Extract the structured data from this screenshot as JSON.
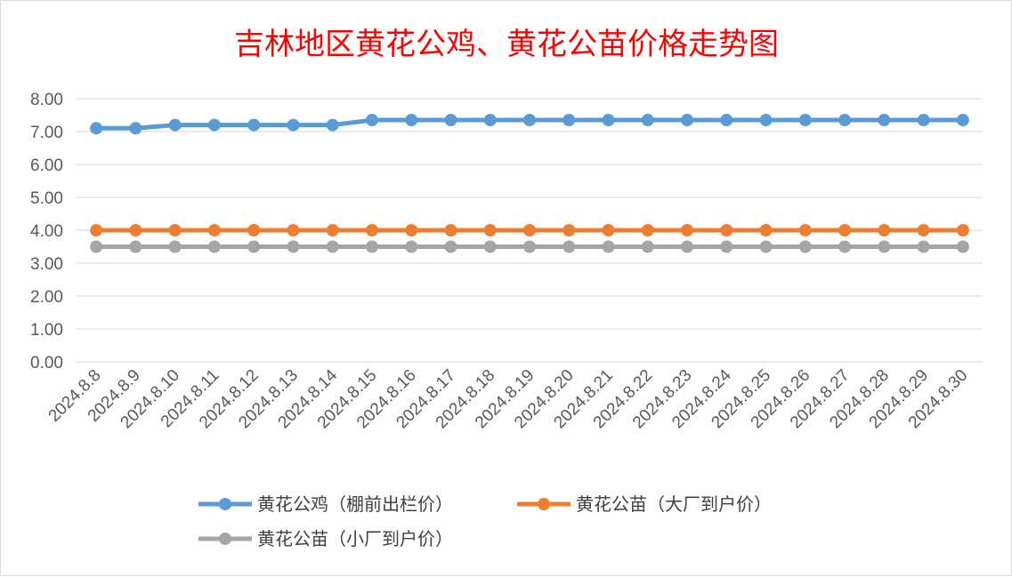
{
  "chart_data": {
    "type": "line",
    "title": "吉林地区黄花公鸡、黄花公苗价格走势图",
    "xlabel": "",
    "ylabel": "",
    "ylim": [
      0,
      8
    ],
    "yticks": [
      "0.00",
      "1.00",
      "2.00",
      "3.00",
      "4.00",
      "5.00",
      "6.00",
      "7.00",
      "8.00"
    ],
    "grid": true,
    "legend_position": "bottom",
    "categories": [
      "2024.8.8",
      "2024.8.9",
      "2024.8.10",
      "2024.8.11",
      "2024.8.12",
      "2024.8.13",
      "2024.8.14",
      "2024.8.15",
      "2024.8.16",
      "2024.8.17",
      "2024.8.18",
      "2024.8.19",
      "2024.8.20",
      "2024.8.21",
      "2024.8.22",
      "2024.8.23",
      "2024.8.24",
      "2024.8.25",
      "2024.8.26",
      "2024.8.27",
      "2024.8.28",
      "2024.8.29",
      "2024.8.30"
    ],
    "series": [
      {
        "name": "黄花公鸡（棚前出栏价）",
        "color": "#5b9bd5",
        "values": [
          7.1,
          7.1,
          7.2,
          7.2,
          7.2,
          7.2,
          7.2,
          7.35,
          7.35,
          7.35,
          7.35,
          7.35,
          7.35,
          7.35,
          7.35,
          7.35,
          7.35,
          7.35,
          7.35,
          7.35,
          7.35,
          7.35,
          7.35
        ]
      },
      {
        "name": "黄花公苗（大厂到户价）",
        "color": "#ed7d31",
        "values": [
          4.0,
          4.0,
          4.0,
          4.0,
          4.0,
          4.0,
          4.0,
          4.0,
          4.0,
          4.0,
          4.0,
          4.0,
          4.0,
          4.0,
          4.0,
          4.0,
          4.0,
          4.0,
          4.0,
          4.0,
          4.0,
          4.0,
          4.0
        ]
      },
      {
        "name": "黄花公苗（小厂到户价）",
        "color": "#a5a5a5",
        "values": [
          3.5,
          3.5,
          3.5,
          3.5,
          3.5,
          3.5,
          3.5,
          3.5,
          3.5,
          3.5,
          3.5,
          3.5,
          3.5,
          3.5,
          3.5,
          3.5,
          3.5,
          3.5,
          3.5,
          3.5,
          3.5,
          3.5,
          3.5
        ]
      }
    ]
  }
}
